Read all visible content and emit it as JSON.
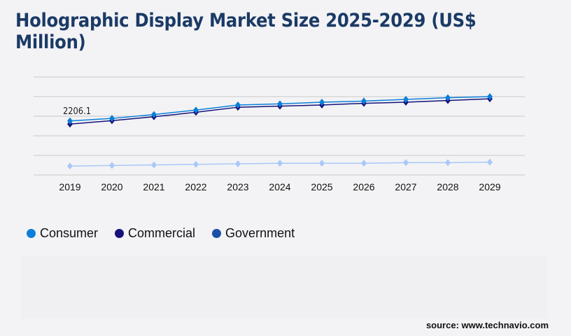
{
  "title": "Holographic Display Market Size 2025-2029 (US$ Million)",
  "source": "source: www.technavio.com",
  "chart_data": {
    "type": "line",
    "title": "Holographic Display Market Size 2025-2029 (US$ Million)",
    "x": [
      "2019",
      "2020",
      "2021",
      "2022",
      "2023",
      "2024",
      "2025",
      "2026",
      "2027",
      "2028",
      "2029"
    ],
    "ylim": [
      0,
      4000
    ],
    "ygrid_step": 800,
    "grid": true,
    "y_tick_labels_shown": false,
    "legend_position": "bottom-left",
    "series": [
      {
        "name": "Consumer",
        "color": "#0a7fd8",
        "line_color": "#0a7fd8",
        "values": [
          2206.1,
          2309,
          2469,
          2651,
          2857,
          2903,
          2971,
          3017,
          3086,
          3154,
          3200
        ]
      },
      {
        "name": "Commercial",
        "color": "#16127a",
        "line_color": "#16127a",
        "values": [
          2080,
          2217,
          2377,
          2560,
          2766,
          2811,
          2857,
          2926,
          2971,
          3040,
          3109
        ]
      },
      {
        "name": "Government",
        "color": "#1c4fa8",
        "line_color": "#a9c8f8",
        "values": [
          366,
          389,
          411,
          434,
          457,
          480,
          480,
          480,
          503,
          503,
          526
        ]
      }
    ],
    "annotations": [
      {
        "series": "Consumer",
        "x": "2019",
        "text": "2206.1"
      }
    ]
  }
}
